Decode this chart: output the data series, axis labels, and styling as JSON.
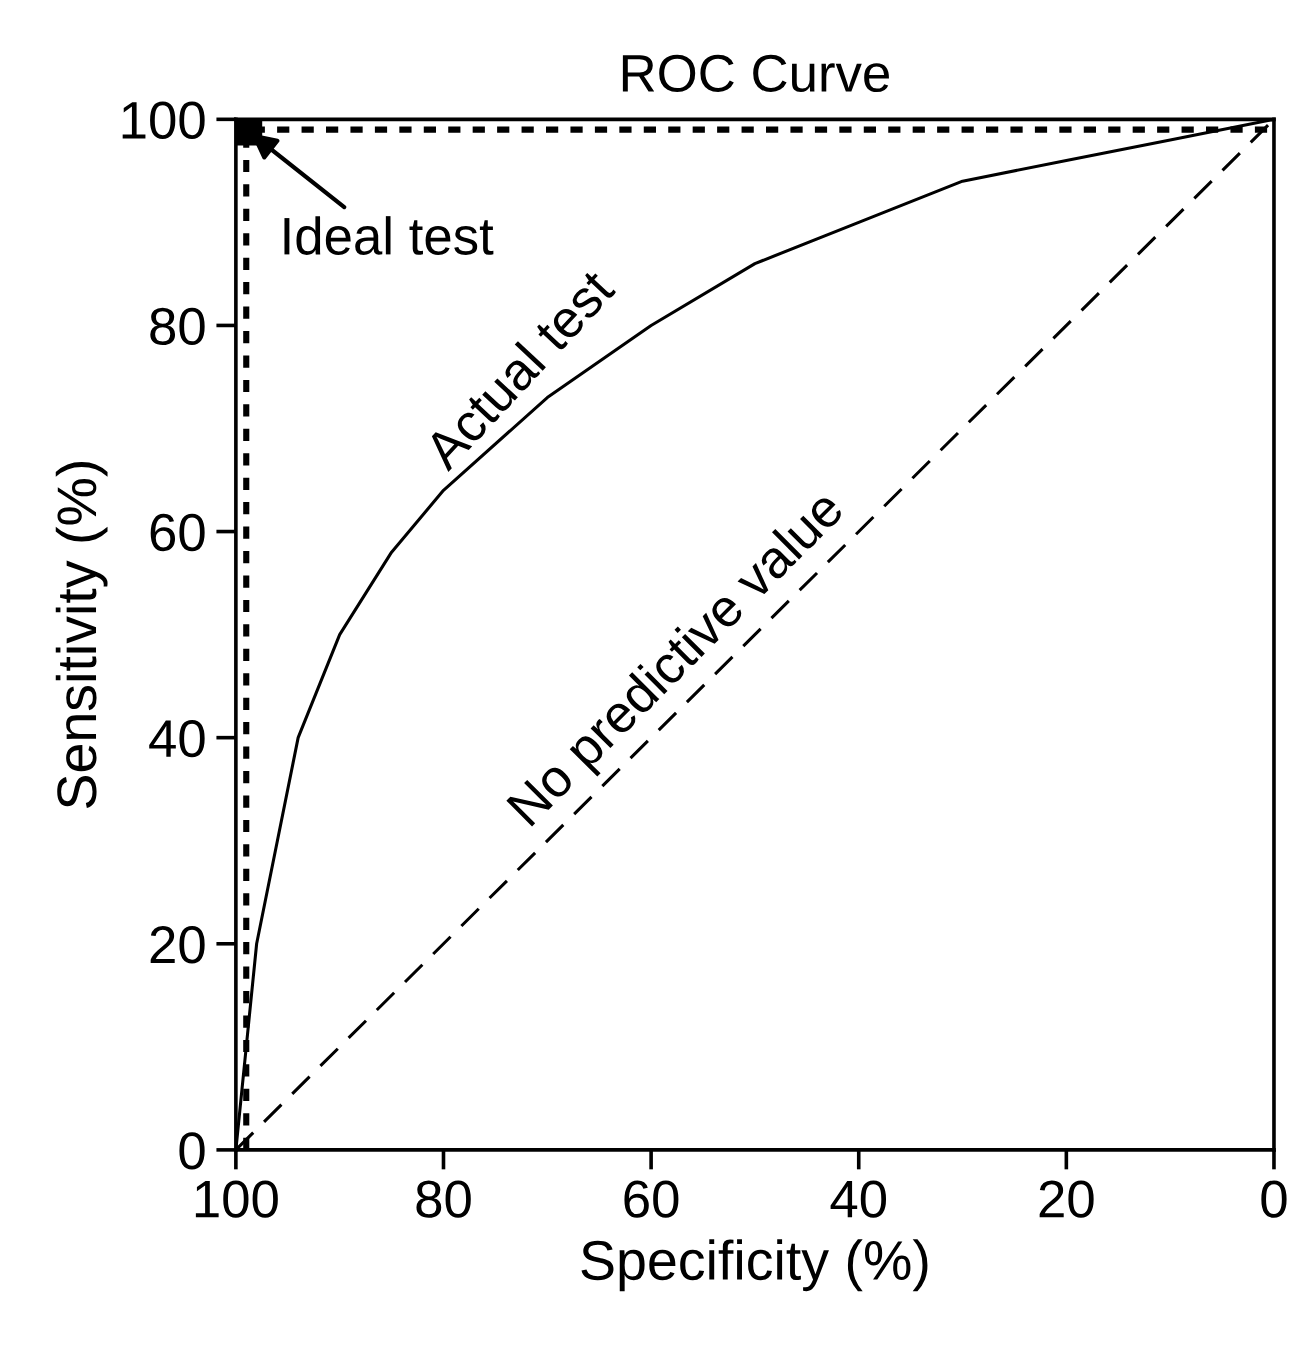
{
  "chart_data": {
    "type": "line",
    "title": "ROC Curve",
    "xlabel": "Specificity (%)",
    "ylabel": "Sensitivity (%)",
    "xlim": [
      100,
      0
    ],
    "ylim": [
      0,
      100
    ],
    "xticks": [
      100,
      80,
      60,
      40,
      20,
      0
    ],
    "yticks": [
      0,
      20,
      40,
      60,
      80,
      100
    ],
    "grid": false,
    "legend": false,
    "series": [
      {
        "type": "line",
        "color": "#000000",
        "line_style": "solid",
        "x": [
          100,
          99,
          98,
          96,
          94,
          90,
          85,
          80,
          70,
          60,
          50,
          40,
          30,
          20,
          10,
          0
        ],
        "values": [
          0,
          10,
          20,
          30,
          40,
          50,
          58,
          64,
          73,
          80,
          86,
          90,
          94,
          96,
          98,
          100
        ]
      },
      {
        "type": "line",
        "color": "#000000",
        "line_style": "dashed",
        "x": [
          100,
          0
        ],
        "values": [
          0,
          100
        ]
      },
      {
        "type": "line",
        "color": "#000000",
        "line_style": "dotted",
        "x": [
          99,
          99,
          0
        ],
        "values": [
          0,
          99,
          99
        ]
      },
      {
        "type": "scatter",
        "color": "#000000",
        "marker": "square",
        "x": [
          99
        ],
        "values": [
          99
        ]
      }
    ],
    "annotations": [
      {
        "text": "Ideal test",
        "x": 99,
        "y": 99
      },
      {
        "text": "Actual test",
        "x": 70,
        "y": 73
      },
      {
        "text": "No predictive value",
        "x": 55,
        "y": 45
      }
    ]
  }
}
